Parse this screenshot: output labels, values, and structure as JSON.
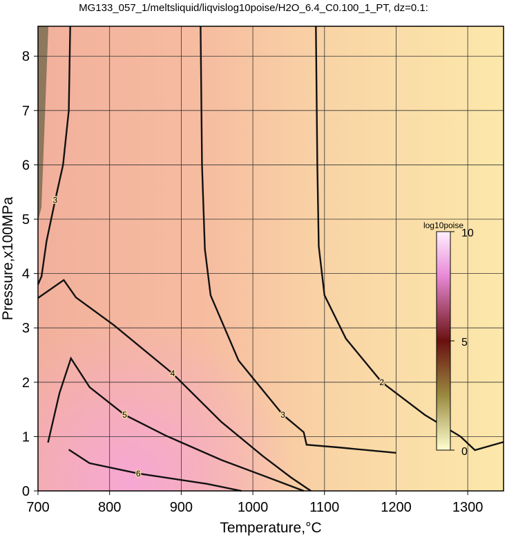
{
  "chart_data": {
    "type": "contour",
    "title": "MG133_057_1/meltsliquid/liqvislog10poise/H2O_6.4_C0.100_1_PT, dz=0.1:",
    "x_label": "Temperature,°C",
    "y_label": "Pressure,x100MPa",
    "xlim": [
      700,
      1350
    ],
    "ylim": [
      0,
      8.55
    ],
    "xticks": [
      700,
      800,
      900,
      1000,
      1100,
      1200,
      1300
    ],
    "yticks": [
      0,
      1,
      2,
      3,
      4,
      5,
      6,
      7,
      8
    ],
    "grid": true,
    "contours": [
      {
        "level": 2,
        "x": [
          1088,
          1090,
          1092,
          1100,
          1130,
          1180,
          1240,
          1290,
          1310,
          1350
        ],
        "y": [
          8.55,
          6,
          4.5,
          3.6,
          2.8,
          2.0,
          1.4,
          1.0,
          0.75,
          0.9
        ]
      },
      {
        "level": 3,
        "x": [
          927,
          929,
          933,
          941,
          980,
          1042,
          1071,
          1075,
          1120,
          1200
        ],
        "y": [
          8.55,
          6,
          4.45,
          3.6,
          2.4,
          1.4,
          1.08,
          0.85,
          0.8,
          0.7
        ]
      },
      {
        "level": 3,
        "x": [
          745,
          743,
          735,
          724,
          712,
          705,
          700
        ],
        "y": [
          8.55,
          7.0,
          6.0,
          5.35,
          4.6,
          3.95,
          3.8
        ]
      },
      {
        "level": 4,
        "x": [
          700,
          736,
          753,
          806,
          888,
          956,
          1014,
          1053,
          1081
        ],
        "y": [
          3.55,
          3.88,
          3.56,
          3.05,
          2.16,
          1.27,
          0.64,
          0.25,
          0
        ]
      },
      {
        "level": 5,
        "x": [
          714,
          730,
          746,
          772,
          821,
          878,
          956,
          1033,
          1071
        ],
        "y": [
          0.89,
          1.8,
          2.44,
          1.91,
          1.4,
          1.02,
          0.57,
          0.19,
          0
        ]
      },
      {
        "level": 6,
        "x": [
          743,
          772,
          840,
          936,
          984
        ],
        "y": [
          0.76,
          0.51,
          0.32,
          0.13,
          0
        ]
      }
    ],
    "colorbar": {
      "label": "log10poise",
      "clim": [
        0,
        10
      ],
      "ticks": [
        0,
        5,
        10
      ]
    }
  }
}
